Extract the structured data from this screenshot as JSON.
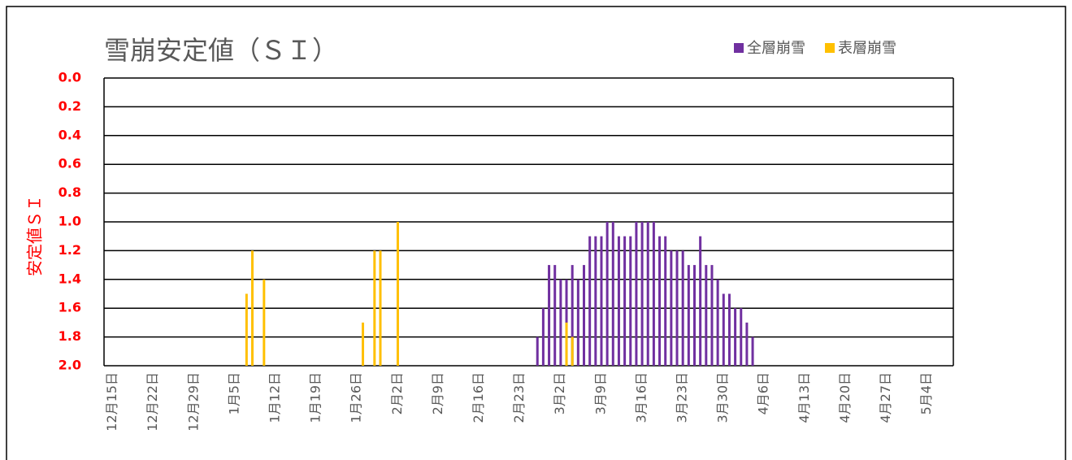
{
  "chart_data": {
    "type": "bar",
    "title": "雪崩安定値（ＳＩ）",
    "y_label": "安定値ＳＩ",
    "categories": [
      "12月15日",
      null,
      null,
      null,
      null,
      null,
      null,
      "12月22日",
      null,
      null,
      null,
      null,
      null,
      null,
      "12月29日",
      null,
      null,
      null,
      null,
      null,
      null,
      "1月5日",
      null,
      null,
      null,
      null,
      null,
      null,
      "1月12日",
      null,
      null,
      null,
      null,
      null,
      null,
      "1月19日",
      null,
      null,
      null,
      null,
      null,
      null,
      "1月26日",
      null,
      null,
      null,
      null,
      null,
      null,
      "2月2日",
      null,
      null,
      null,
      null,
      null,
      null,
      "2月9日",
      null,
      null,
      null,
      null,
      null,
      null,
      "2月16日",
      null,
      null,
      null,
      null,
      null,
      null,
      "2月23日",
      null,
      null,
      null,
      null,
      null,
      null,
      "3月2日",
      null,
      null,
      null,
      null,
      null,
      null,
      "3月9日",
      null,
      null,
      null,
      null,
      null,
      null,
      "3月16日",
      null,
      null,
      null,
      null,
      null,
      null,
      "3月23日",
      null,
      null,
      null,
      null,
      null,
      null,
      "3月30日",
      null,
      null,
      null,
      null,
      null,
      null,
      "4月6日",
      null,
      null,
      null,
      null,
      null,
      null,
      "4月13日",
      null,
      null,
      null,
      null,
      null,
      null,
      "4月20日",
      null,
      null,
      null,
      null,
      null,
      null,
      "4月27日",
      null,
      null,
      null,
      null,
      null,
      null,
      "5月4日",
      null,
      null,
      null,
      null,
      null
    ],
    "series": [
      {
        "name": "全層崩雪",
        "color": "#7030a0",
        "values": [
          null,
          null,
          null,
          null,
          null,
          null,
          null,
          null,
          null,
          null,
          null,
          null,
          null,
          null,
          null,
          null,
          null,
          null,
          null,
          null,
          null,
          null,
          null,
          null,
          null,
          null,
          null,
          null,
          null,
          null,
          null,
          null,
          null,
          null,
          null,
          null,
          null,
          null,
          null,
          null,
          null,
          null,
          null,
          null,
          null,
          null,
          null,
          null,
          null,
          null,
          null,
          null,
          null,
          null,
          null,
          null,
          null,
          null,
          null,
          null,
          null,
          null,
          null,
          null,
          null,
          null,
          null,
          null,
          null,
          null,
          null,
          null,
          null,
          null,
          1.8,
          1.6,
          1.3,
          1.3,
          1.4,
          1.4,
          1.3,
          1.4,
          1.3,
          1.1,
          1.1,
          1.1,
          1.0,
          1.0,
          1.1,
          1.1,
          1.1,
          1.0,
          1.0,
          1.0,
          1.0,
          1.1,
          1.1,
          1.2,
          1.2,
          1.2,
          1.3,
          1.3,
          1.1,
          1.3,
          1.3,
          1.4,
          1.5,
          1.5,
          1.6,
          1.6,
          1.7,
          1.8,
          null,
          null,
          null,
          null,
          null,
          null,
          null,
          null,
          null,
          null,
          null,
          null,
          null,
          null,
          null,
          null,
          null,
          null,
          null,
          null,
          null,
          null,
          null,
          null,
          null,
          null,
          null,
          null,
          null,
          null,
          null,
          null,
          null,
          null
        ]
      },
      {
        "name": "表層崩雪",
        "color": "#ffc000",
        "values": [
          null,
          null,
          null,
          null,
          null,
          null,
          null,
          null,
          null,
          null,
          null,
          null,
          null,
          null,
          null,
          null,
          null,
          null,
          null,
          null,
          null,
          null,
          null,
          null,
          1.5,
          1.2,
          null,
          1.4,
          null,
          null,
          null,
          null,
          null,
          null,
          null,
          null,
          null,
          null,
          null,
          null,
          null,
          null,
          null,
          null,
          1.7,
          null,
          1.2,
          1.2,
          null,
          null,
          1.0,
          null,
          null,
          null,
          null,
          null,
          null,
          null,
          null,
          null,
          null,
          null,
          null,
          null,
          null,
          null,
          null,
          null,
          null,
          null,
          null,
          null,
          null,
          null,
          null,
          null,
          null,
          null,
          null,
          1.7,
          1.8,
          null,
          null,
          null,
          null,
          null,
          null,
          null,
          null,
          null,
          null,
          null,
          null,
          null,
          null,
          null,
          null,
          null,
          null,
          null,
          null,
          null,
          null,
          null,
          null,
          null,
          null,
          null,
          null,
          null,
          null,
          null,
          null,
          null,
          null,
          null,
          null,
          null,
          null,
          null,
          null,
          null,
          null,
          null,
          null,
          null,
          null,
          null,
          null,
          null,
          null,
          null,
          null,
          null,
          null,
          null,
          null,
          null,
          null,
          null,
          null,
          null,
          null,
          null,
          null,
          null
        ]
      }
    ],
    "ylim": [
      2,
      0
    ],
    "yticks": [
      {
        "value": 0,
        "label": "0.0"
      },
      0.2,
      0.4,
      0.6,
      0.8,
      {
        "value": 1,
        "label": "1.0"
      },
      1.2,
      1.4,
      1.6,
      1.8,
      {
        "value": 2,
        "label": "2.0"
      }
    ],
    "grid": true,
    "legend": "top-right"
  }
}
